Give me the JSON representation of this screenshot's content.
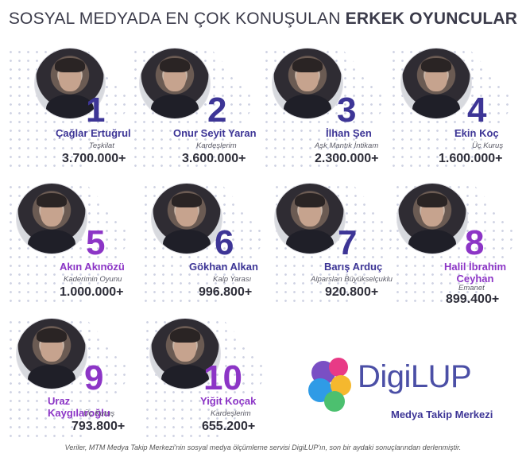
{
  "title": {
    "prefix": "SOSYAL MEDYADA EN ÇOK KONUŞULAN",
    "emphasis": "ERKEK OYUNCULAR"
  },
  "actors": [
    {
      "rank": "1",
      "name": "Çağlar Ertuğrul",
      "show": "Teşkilat",
      "count": "3.700.000+",
      "color": "#3d3596"
    },
    {
      "rank": "2",
      "name": "Onur Seyit Yaran",
      "show": "Kardeşlerim",
      "count": "3.600.000+",
      "color": "#3d3596"
    },
    {
      "rank": "3",
      "name": "İlhan Şen",
      "show": "Aşk Mantık İntikam",
      "count": "2.300.000+",
      "color": "#3d3596"
    },
    {
      "rank": "4",
      "name": "Ekin Koç",
      "show": "Üç Kuruş",
      "count": "1.600.000+",
      "color": "#3d3596"
    },
    {
      "rank": "5",
      "name": "Akın Akınözü",
      "show": "Kaderimin Oyunu",
      "count": "1.000.000+",
      "color": "#8c35c6"
    },
    {
      "rank": "6",
      "name": "Gökhan Alkan",
      "show": "Kalp Yarası",
      "count": "996.800+",
      "color": "#3d3596"
    },
    {
      "rank": "7",
      "name": "Barış Arduç",
      "show": "Alparslan Büyükselçuklu",
      "count": "920.800+",
      "color": "#3d3596"
    },
    {
      "rank": "8",
      "name": "Halil İbrahim Ceyhan",
      "show": "Emanet",
      "count": "899.400+",
      "color": "#8c35c6"
    },
    {
      "rank": "9",
      "name": "Uraz Kaygılaroğlu",
      "show": "Üç Kuruş",
      "count": "793.800+",
      "color": "#8c35c6"
    },
    {
      "rank": "10",
      "name": "Yiğit Koçak",
      "show": "Kardeşlerim",
      "count": "655.200+",
      "color": "#8c35c6"
    }
  ],
  "logo": {
    "brand": "DigiLUP",
    "subtitle": "Medya Takip Merkezi"
  },
  "footer": "Veriler, MTM Medya Takip Merkezi'nin sosyal medya ölçümleme servisi DigiLUP'ın, son bir aydaki sonuçlarından derlenmiştir."
}
